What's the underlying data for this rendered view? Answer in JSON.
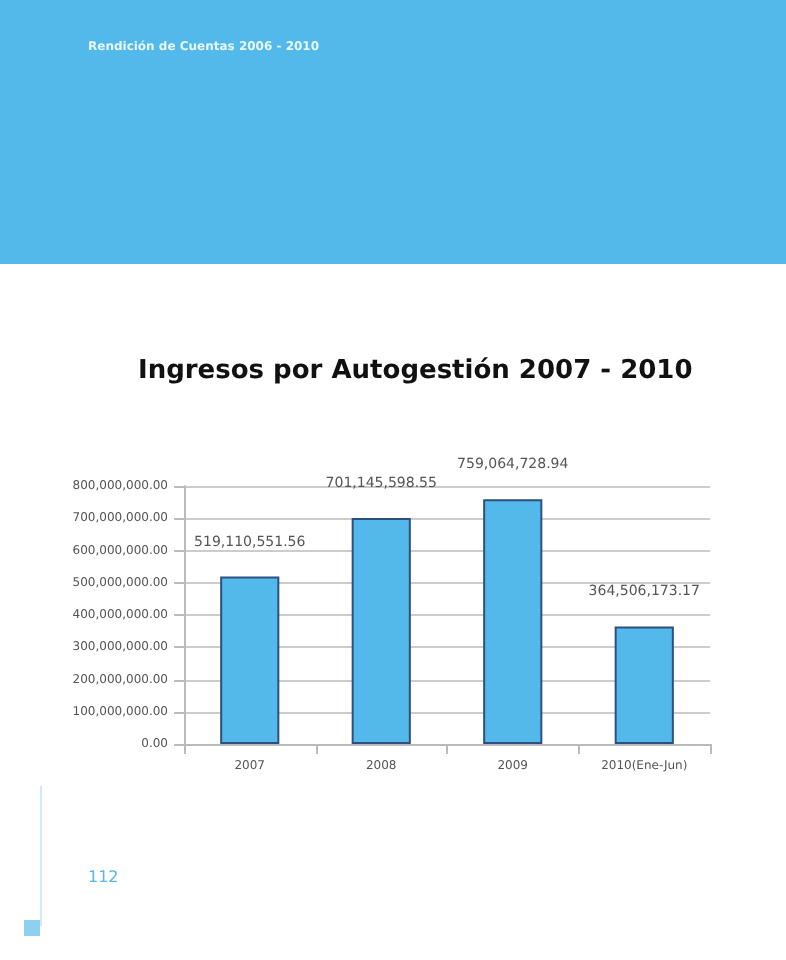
{
  "chart_data": {
    "type": "bar",
    "title": "Ingresos por Autogestión 2007 - 2010",
    "categories": [
      "2007",
      "2008",
      "2009",
      "2010(Ene-Jun)"
    ],
    "values": [
      519110551.56,
      701145598.55,
      759064728.94,
      364506173.17
    ],
    "value_labels": [
      "519,110,551.56",
      "701,145,598.55",
      "759,064,728.94",
      "364,506,173.17"
    ],
    "color": "#53b9ea",
    "ylim": [
      0,
      800000000
    ],
    "yticks": [
      {
        "value": 0,
        "label": "0.00"
      },
      {
        "value": 100000000,
        "label": "100,000,000.00"
      },
      {
        "value": 200000000,
        "label": "200,000,000.00"
      },
      {
        "value": 300000000,
        "label": "300,000,000.00"
      },
      {
        "value": 400000000,
        "label": "400,000,000.00"
      },
      {
        "value": 500000000,
        "label": "500,000,000.00"
      },
      {
        "value": 600000000,
        "label": "600,000,000.00"
      },
      {
        "value": 700000000,
        "label": "700,000,000.00"
      },
      {
        "value": 800000000,
        "label": "800,000,000.00"
      }
    ],
    "grid": "y",
    "annotations": [
      "Rendición de Cuentas 2006 - 2010",
      "112"
    ]
  }
}
